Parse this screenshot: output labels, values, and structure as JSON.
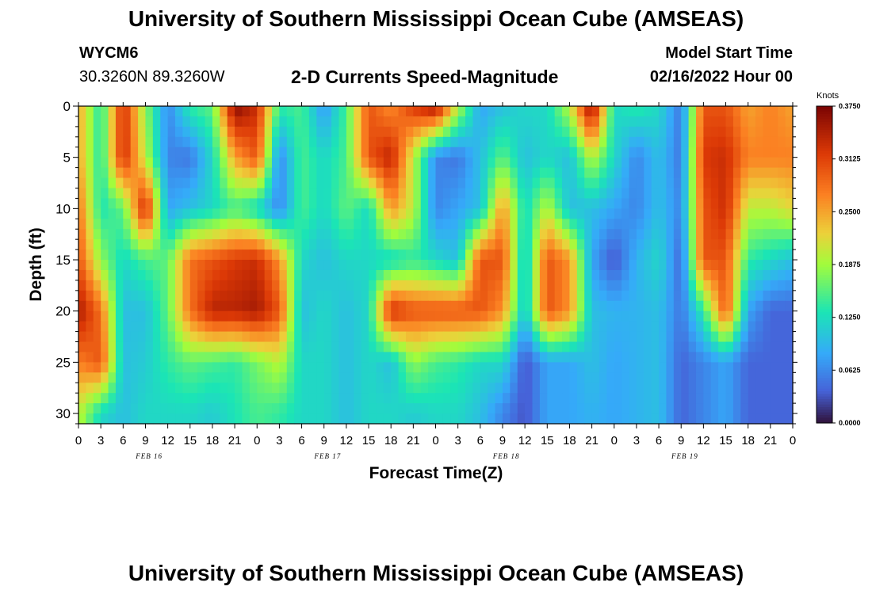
{
  "header": {
    "title": "University of Southern Mississippi Ocean Cube (AMSEAS)",
    "station_id": "WYCM6",
    "coordinates": "30.3260N  89.3260W",
    "subtitle": "2-D Currents Speed-Magnitude",
    "model_start_label": "Model Start Time",
    "model_start_value": "02/16/2022 Hour 00"
  },
  "footer": {
    "title": "University of Southern Mississippi Ocean Cube (AMSEAS)"
  },
  "chart_data": {
    "type": "heatmap",
    "xlabel": "Forecast Time(Z)",
    "ylabel": "Depth (ft)",
    "x_range_hours": [
      0,
      96
    ],
    "x_tick_labels": [
      "0",
      "3",
      "6",
      "9",
      "12",
      "15",
      "18",
      "21",
      "0",
      "3",
      "6",
      "9",
      "12",
      "15",
      "18",
      "21",
      "0",
      "3",
      "6",
      "9",
      "12",
      "15",
      "18",
      "21",
      "0",
      "3",
      "6",
      "9",
      "12",
      "15",
      "18",
      "21",
      "0"
    ],
    "day_labels": [
      "FEB 16",
      "FEB 17",
      "FEB 18",
      "FEB 19"
    ],
    "y_range": [
      0,
      31
    ],
    "y_ticks": [
      0,
      5,
      10,
      15,
      20,
      25,
      30
    ],
    "y_inverted": true,
    "colorbar": {
      "unit": "Knots",
      "range": [
        0,
        0.375
      ],
      "tick_labels": [
        "0.3750",
        "0.3125",
        "0.2500",
        "0.1875",
        "0.1250",
        "0.0625",
        "0.0000"
      ]
    },
    "grid": {
      "hours": [
        0,
        3,
        6,
        9,
        12,
        15,
        18,
        21,
        24,
        27,
        30,
        33,
        36,
        39,
        42,
        45,
        48,
        51,
        54,
        57,
        60,
        63,
        66,
        69,
        72,
        75,
        78,
        81,
        84,
        87,
        90,
        93,
        96
      ],
      "depths": [
        0,
        5,
        10,
        15,
        20,
        25,
        30
      ],
      "values": [
        [
          0.25,
          0.13,
          0.33,
          0.18,
          0.06,
          0.14,
          0.16,
          0.37,
          0.33,
          0.14,
          0.15,
          0.07,
          0.15,
          0.3,
          0.26,
          0.32,
          0.36,
          0.2,
          0.08,
          0.1,
          0.12,
          0.12,
          0.2,
          0.37,
          0.12,
          0.14,
          0.12,
          0.05,
          0.3,
          0.3,
          0.25,
          0.27,
          0.25
        ],
        [
          0.25,
          0.13,
          0.33,
          0.2,
          0.06,
          0.05,
          0.12,
          0.25,
          0.3,
          0.06,
          0.15,
          0.12,
          0.15,
          0.3,
          0.34,
          0.2,
          0.06,
          0.05,
          0.1,
          0.16,
          0.1,
          0.12,
          0.1,
          0.2,
          0.12,
          0.06,
          0.1,
          0.05,
          0.32,
          0.33,
          0.27,
          0.27,
          0.27
        ],
        [
          0.28,
          0.13,
          0.16,
          0.34,
          0.08,
          0.1,
          0.12,
          0.15,
          0.12,
          0.06,
          0.15,
          0.12,
          0.16,
          0.12,
          0.26,
          0.2,
          0.06,
          0.08,
          0.1,
          0.26,
          0.12,
          0.2,
          0.1,
          0.1,
          0.08,
          0.06,
          0.1,
          0.06,
          0.3,
          0.33,
          0.2,
          0.2,
          0.22
        ],
        [
          0.3,
          0.18,
          0.12,
          0.15,
          0.16,
          0.28,
          0.3,
          0.32,
          0.33,
          0.26,
          0.12,
          0.1,
          0.12,
          0.12,
          0.12,
          0.14,
          0.12,
          0.1,
          0.3,
          0.3,
          0.1,
          0.3,
          0.26,
          0.08,
          0.03,
          0.09,
          0.12,
          0.04,
          0.3,
          0.3,
          0.14,
          0.12,
          0.1
        ],
        [
          0.35,
          0.28,
          0.1,
          0.1,
          0.16,
          0.28,
          0.34,
          0.34,
          0.35,
          0.3,
          0.1,
          0.12,
          0.1,
          0.12,
          0.33,
          0.3,
          0.3,
          0.3,
          0.3,
          0.26,
          0.1,
          0.3,
          0.26,
          0.1,
          0.09,
          0.09,
          0.1,
          0.05,
          0.14,
          0.3,
          0.08,
          0.04,
          0.04
        ],
        [
          0.27,
          0.3,
          0.1,
          0.11,
          0.14,
          0.16,
          0.15,
          0.14,
          0.17,
          0.2,
          0.12,
          0.12,
          0.1,
          0.12,
          0.1,
          0.18,
          0.15,
          0.14,
          0.12,
          0.12,
          0.03,
          0.08,
          0.08,
          0.1,
          0.08,
          0.09,
          0.1,
          0.04,
          0.06,
          0.08,
          0.04,
          0.04,
          0.04
        ],
        [
          0.2,
          0.12,
          0.1,
          0.12,
          0.12,
          0.12,
          0.11,
          0.13,
          0.15,
          0.14,
          0.12,
          0.12,
          0.1,
          0.12,
          0.12,
          0.11,
          0.12,
          0.12,
          0.1,
          0.06,
          0.03,
          0.08,
          0.08,
          0.09,
          0.08,
          0.09,
          0.1,
          0.04,
          0.06,
          0.08,
          0.04,
          0.04,
          0.04
        ]
      ]
    }
  }
}
